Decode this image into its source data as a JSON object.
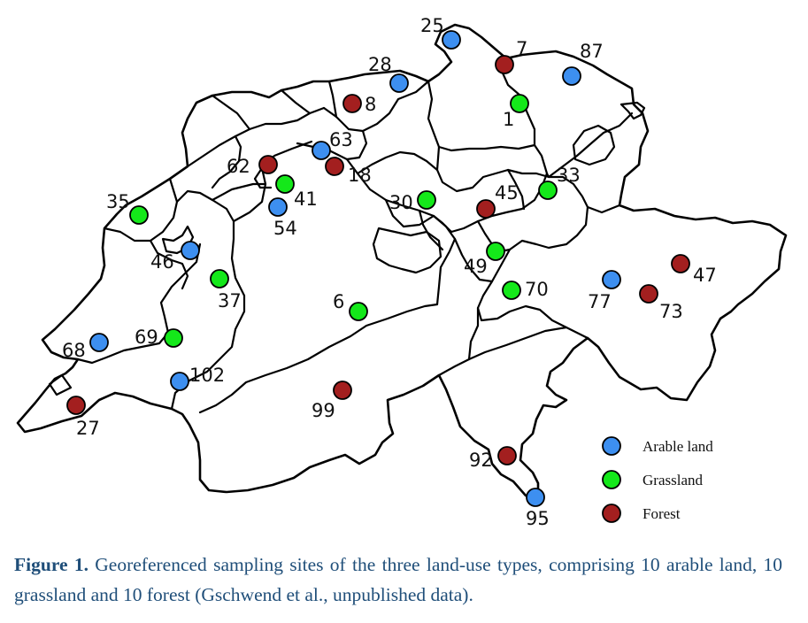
{
  "legend": [
    {
      "label": "Arable land",
      "color": "#3d8ff0"
    },
    {
      "label": "Grassland",
      "color": "#14e81a"
    },
    {
      "label": "Forest",
      "color": "#a31f1f"
    }
  ],
  "caption": {
    "label": "Figure 1.",
    "text": "Georeferenced sampling sites of the three land-use types, comprising 10 arable land, 10 grassland and 10 forest (Gschwend et al., unpublished data)."
  },
  "sites": [
    {
      "id": "25",
      "type": "Arable land"
    },
    {
      "id": "7",
      "type": "Forest"
    },
    {
      "id": "87",
      "type": "Arable land"
    },
    {
      "id": "28",
      "type": "Arable land"
    },
    {
      "id": "8",
      "type": "Forest"
    },
    {
      "id": "1",
      "type": "Grassland"
    },
    {
      "id": "63",
      "type": "Arable land"
    },
    {
      "id": "62",
      "type": "Forest"
    },
    {
      "id": "18",
      "type": "Forest"
    },
    {
      "id": "41",
      "type": "Grassland"
    },
    {
      "id": "33",
      "type": "Grassland"
    },
    {
      "id": "35",
      "type": "Grassland"
    },
    {
      "id": "30",
      "type": "Grassland"
    },
    {
      "id": "45",
      "type": "Forest"
    },
    {
      "id": "54",
      "type": "Arable land"
    },
    {
      "id": "46",
      "type": "Arable land"
    },
    {
      "id": "49",
      "type": "Grassland"
    },
    {
      "id": "47",
      "type": "Forest"
    },
    {
      "id": "37",
      "type": "Grassland"
    },
    {
      "id": "77",
      "type": "Arable land"
    },
    {
      "id": "70",
      "type": "Grassland"
    },
    {
      "id": "73",
      "type": "Forest"
    },
    {
      "id": "6",
      "type": "Grassland"
    },
    {
      "id": "69",
      "type": "Grassland"
    },
    {
      "id": "68",
      "type": "Arable land"
    },
    {
      "id": "102",
      "type": "Arable land"
    },
    {
      "id": "99",
      "type": "Forest"
    },
    {
      "id": "27",
      "type": "Forest"
    },
    {
      "id": "92",
      "type": "Forest"
    },
    {
      "id": "95",
      "type": "Arable land"
    }
  ]
}
